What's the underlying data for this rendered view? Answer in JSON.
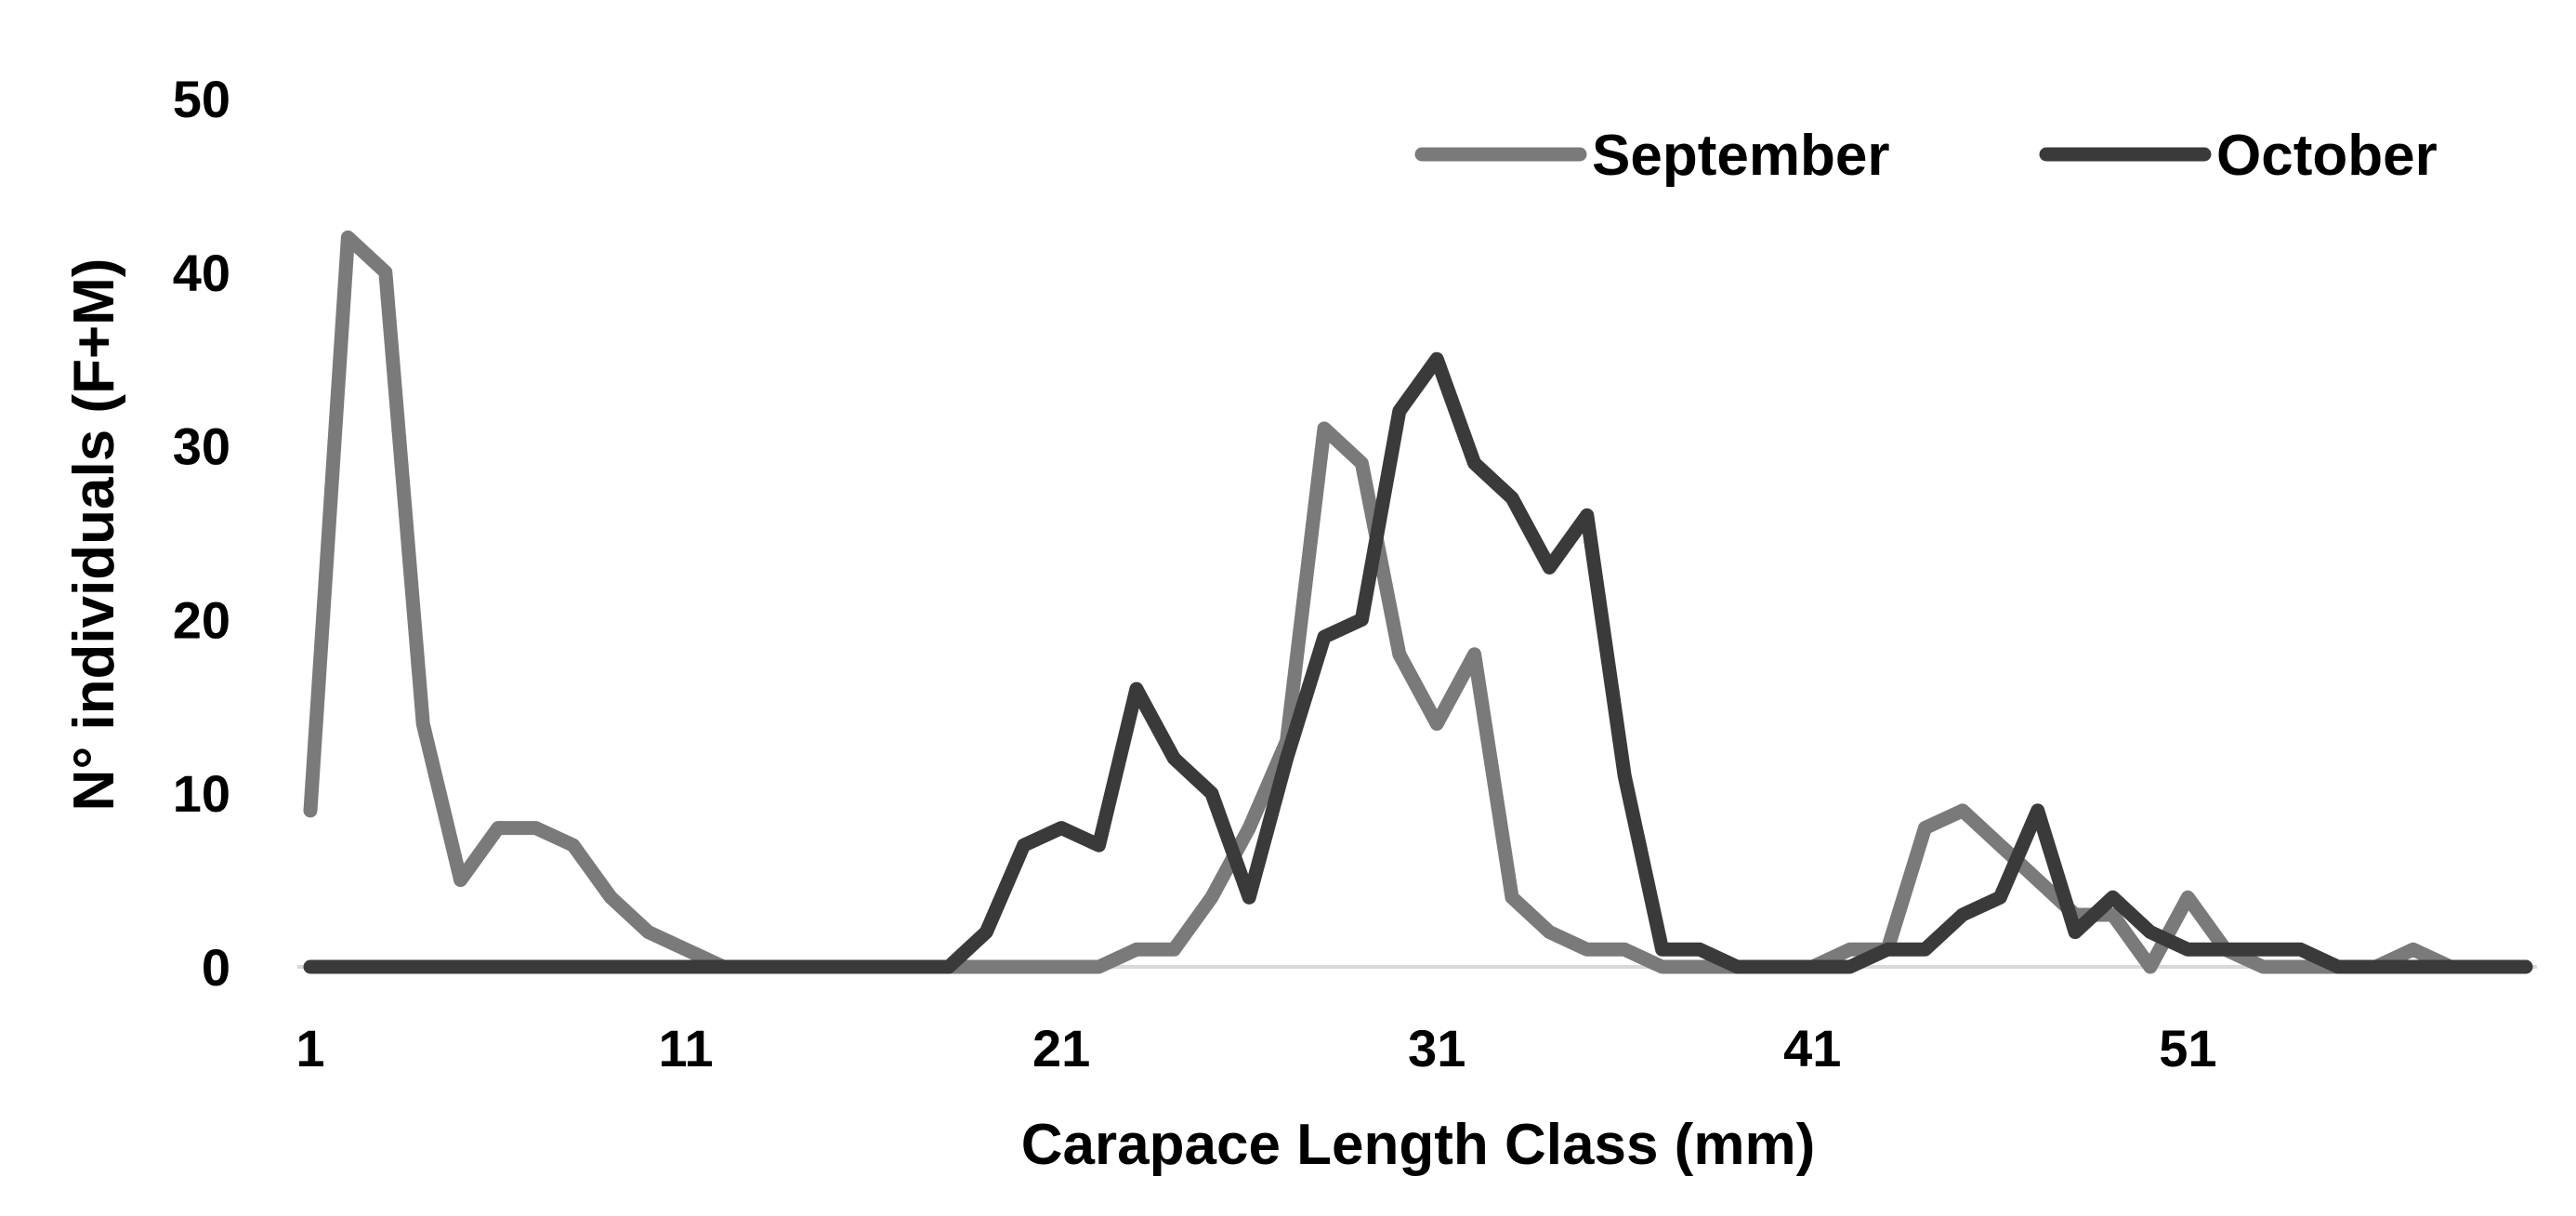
{
  "chart_data": {
    "type": "line",
    "title": "",
    "xlabel": "Carapace Length Class (mm)",
    "ylabel": "N° individuals (F+M)",
    "xlim": [
      1,
      60
    ],
    "ylim": [
      0,
      50
    ],
    "x_ticks": [
      1,
      11,
      21,
      31,
      41,
      51
    ],
    "y_ticks": [
      0,
      10,
      20,
      30,
      40,
      50
    ],
    "legend_position": "top-right",
    "grid": false,
    "x": [
      1,
      2,
      3,
      4,
      5,
      6,
      7,
      8,
      9,
      10,
      11,
      12,
      13,
      14,
      15,
      16,
      17,
      18,
      19,
      20,
      21,
      22,
      23,
      24,
      25,
      26,
      27,
      28,
      29,
      30,
      31,
      32,
      33,
      34,
      35,
      36,
      37,
      38,
      39,
      40,
      41,
      42,
      43,
      44,
      45,
      46,
      47,
      48,
      49,
      50,
      51,
      52,
      53,
      54,
      55,
      56,
      57,
      58,
      59,
      60
    ],
    "series": [
      {
        "name": "September",
        "color": "#7a7a7a",
        "values": [
          9,
          42,
          40,
          14,
          5,
          8,
          8,
          7,
          4,
          2,
          1,
          0,
          0,
          0,
          0,
          0,
          0,
          0,
          0,
          0,
          0,
          0,
          1,
          1,
          4,
          8,
          13,
          31,
          29,
          18,
          14,
          18,
          4,
          2,
          1,
          1,
          0,
          0,
          0,
          0,
          0,
          1,
          1,
          8,
          9,
          7,
          5,
          3,
          3,
          0,
          4,
          1,
          0,
          0,
          0,
          0,
          1,
          0,
          0,
          0
        ]
      },
      {
        "name": "October",
        "color": "#3a3a3a",
        "values": [
          0,
          0,
          0,
          0,
          0,
          0,
          0,
          0,
          0,
          0,
          0,
          0,
          0,
          0,
          0,
          0,
          0,
          0,
          2,
          7,
          8,
          7,
          16,
          12,
          10,
          4,
          12,
          19,
          20,
          32,
          35,
          29,
          27,
          23,
          26,
          11,
          1,
          1,
          0,
          0,
          0,
          0,
          1,
          1,
          3,
          4,
          9,
          2,
          4,
          2,
          1,
          1,
          1,
          1,
          0,
          0,
          0,
          0,
          0,
          0
        ]
      }
    ]
  }
}
